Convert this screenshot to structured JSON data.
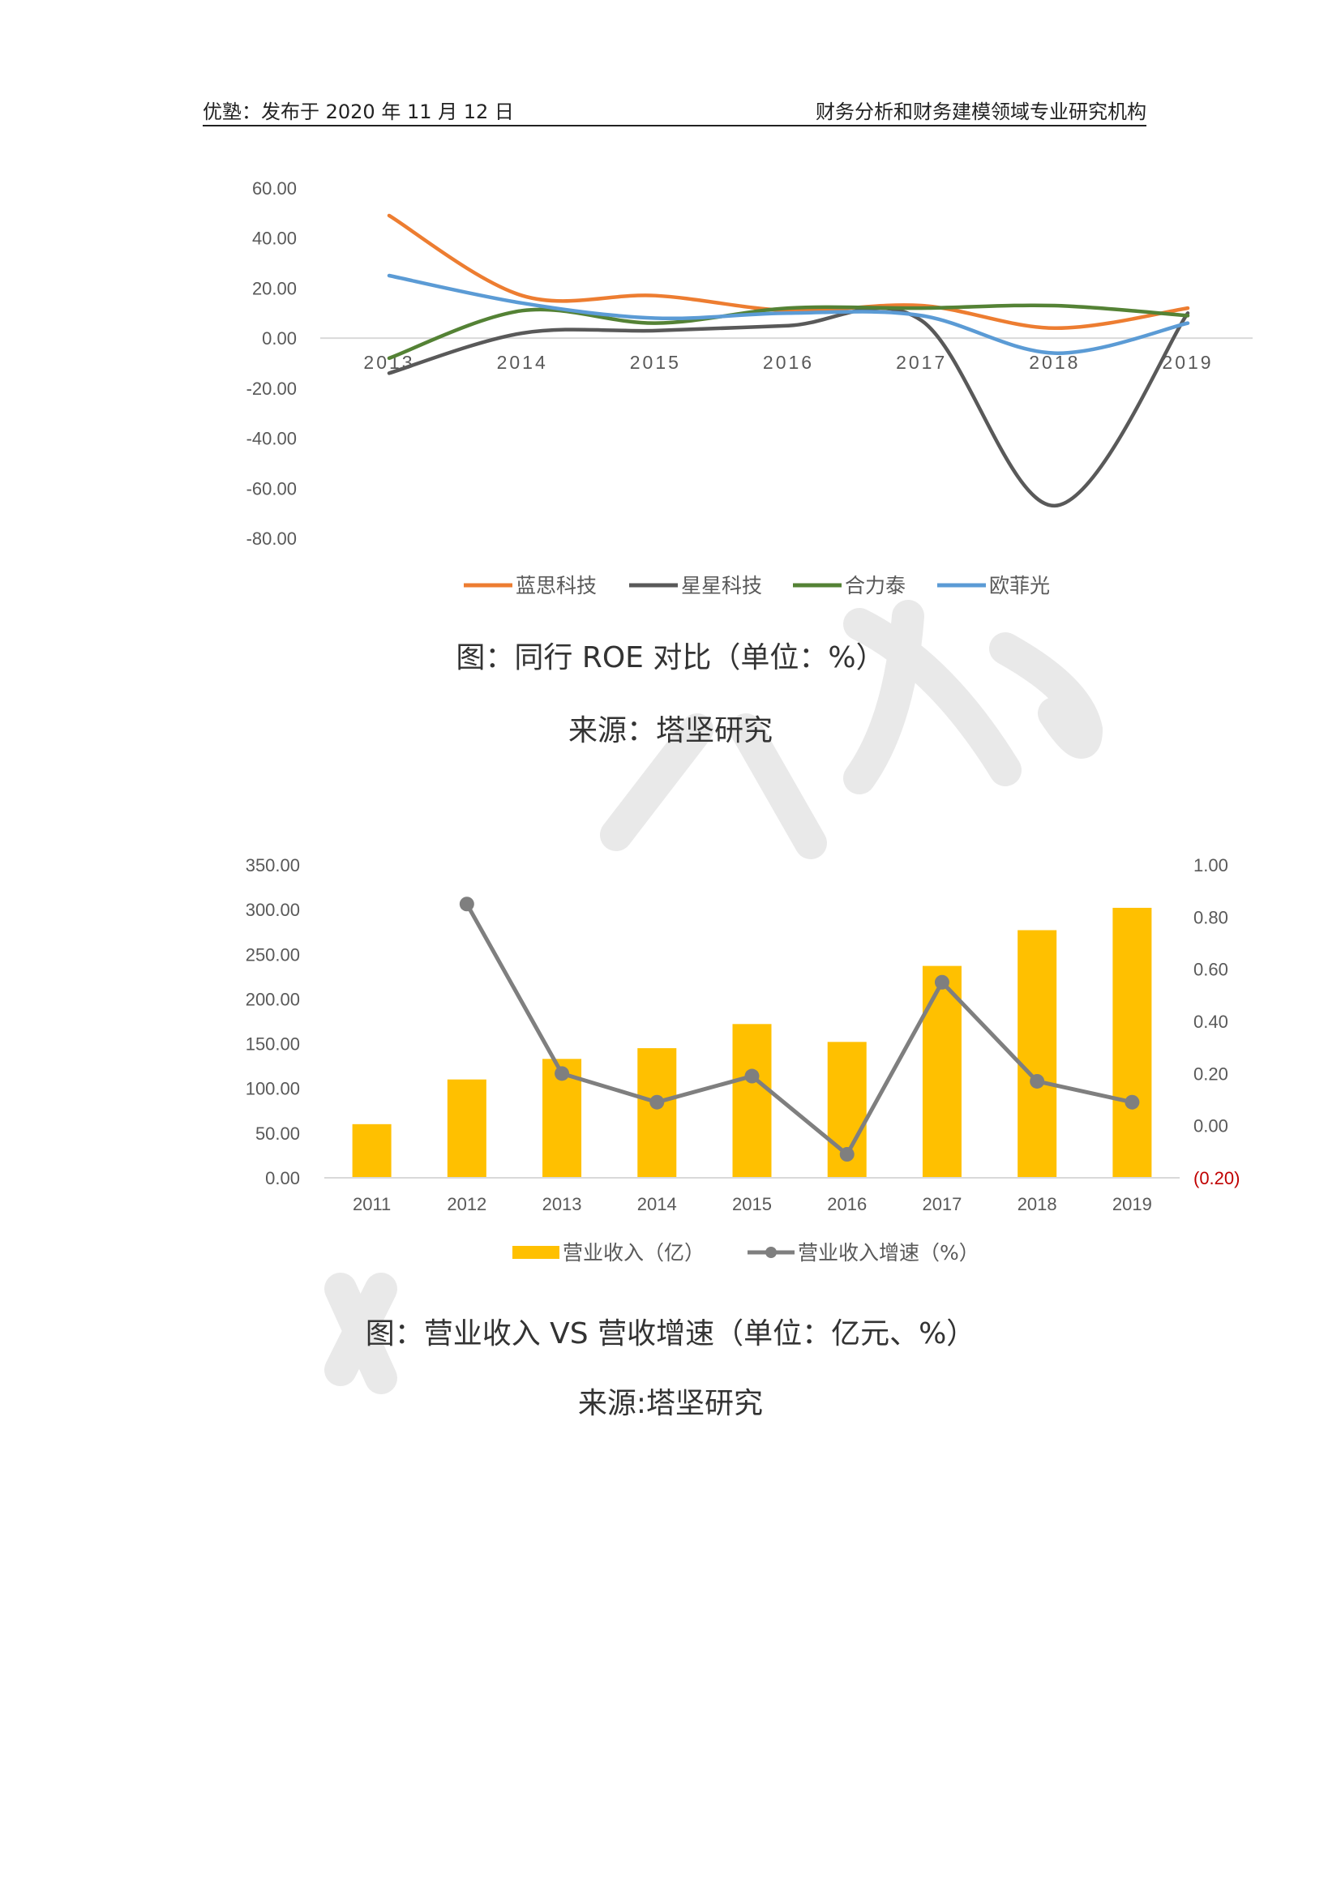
{
  "header": {
    "left": "优塾：发布于 2020 年 11 月 12 日",
    "right": "财务分析和财务建模领域专业研究机构"
  },
  "captions": {
    "roe_title": "图：同行 ROE 对比（单位：%）",
    "roe_source": "来源：塔坚研究",
    "rev_title": "图：营业收入 VS 营收增速（单位：亿元、%）",
    "rev_source": "来源:塔坚研究"
  },
  "colors": {
    "lansi": "#ED7D31",
    "xingxing": "#595959",
    "helitai": "#548235",
    "oufeiguang": "#5B9BD5",
    "revenue_bar": "#FFC000",
    "growth_line": "#7F7F7F",
    "negative_tick": "#C00000"
  },
  "chart_data": [
    {
      "type": "line",
      "x": [
        "2013",
        "2014",
        "2015",
        "2016",
        "2017",
        "2018",
        "2019"
      ],
      "ylim": [
        -80,
        60
      ],
      "yticks": [
        "60.00",
        "40.00",
        "20.00",
        "0.00",
        "-20.00",
        "-40.00",
        "-60.00",
        "-80.00"
      ],
      "legend_position": "bottom",
      "grid": false,
      "series": [
        {
          "name": "蓝思科技",
          "values": [
            49,
            17,
            17,
            11,
            13,
            4,
            12
          ]
        },
        {
          "name": "星星科技",
          "values": [
            -14,
            2,
            3,
            5,
            7,
            -67,
            10
          ]
        },
        {
          "name": "合力泰",
          "values": [
            -8,
            11,
            6,
            12,
            12,
            13,
            9
          ]
        },
        {
          "name": "欧菲光",
          "values": [
            25,
            14,
            8,
            10,
            9,
            -6,
            6
          ]
        }
      ]
    },
    {
      "type": "bar",
      "categories": [
        "2011",
        "2012",
        "2013",
        "2014",
        "2015",
        "2016",
        "2017",
        "2018",
        "2019"
      ],
      "ylim": [
        0,
        350
      ],
      "y2lim": [
        -0.2,
        1.0
      ],
      "yticks": [
        "350.00",
        "300.00",
        "250.00",
        "200.00",
        "150.00",
        "100.00",
        "50.00",
        "0.00"
      ],
      "y2ticks": [
        "1.00",
        "0.80",
        "0.60",
        "0.40",
        "0.20",
        "0.00",
        "(0.20)"
      ],
      "legend_position": "bottom",
      "grid": false,
      "series": [
        {
          "name": "营业收入（亿）",
          "type": "bar",
          "axis": "left",
          "values": [
            60,
            110,
            133,
            145,
            172,
            152,
            237,
            277,
            302
          ]
        },
        {
          "name": "营业收入增速（%）",
          "type": "line",
          "axis": "right",
          "values": [
            null,
            0.85,
            0.2,
            0.09,
            0.19,
            -0.11,
            0.55,
            0.17,
            0.09
          ]
        }
      ]
    }
  ]
}
